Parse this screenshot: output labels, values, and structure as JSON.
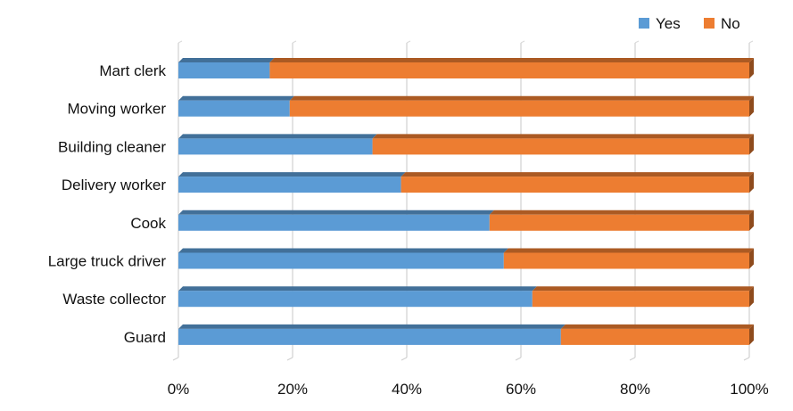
{
  "chart_data": {
    "type": "bar",
    "orientation": "horizontal",
    "stacked": "percent",
    "categories": [
      "Mart clerk",
      "Moving worker",
      "Building cleaner",
      "Delivery worker",
      "Cook",
      "Large truck driver",
      "Waste collector",
      "Guard"
    ],
    "series": [
      {
        "name": "Yes",
        "values": [
          16,
          19.5,
          34,
          39,
          54.5,
          57,
          62,
          67
        ]
      },
      {
        "name": "No",
        "values": [
          84,
          80.5,
          66,
          61,
          45.5,
          43,
          38,
          33
        ]
      }
    ],
    "xlim": [
      0,
      100
    ],
    "x_ticks": [
      "0%",
      "20%",
      "40%",
      "60%",
      "80%",
      "100%"
    ],
    "grid": "vertical",
    "legend_position": "top-right",
    "colors": {
      "Yes": "#5b9bd5",
      "No": "#ed7d31"
    }
  }
}
